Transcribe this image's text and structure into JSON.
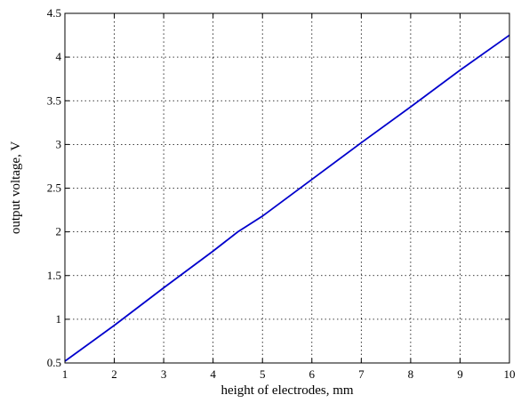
{
  "chart_data": {
    "type": "line",
    "xlabel": "height of electrodes, mm",
    "ylabel": "output voltage,  V",
    "xlim": [
      1,
      10
    ],
    "ylim": [
      0.5,
      4.5
    ],
    "xticks": [
      "1",
      "2",
      "3",
      "4",
      "5",
      "6",
      "7",
      "8",
      "9",
      "10"
    ],
    "yticks": [
      "0.5",
      "1",
      "1.5",
      "2",
      "2.5",
      "3",
      "3.5",
      "4",
      "4.5"
    ],
    "grid": true,
    "series": [
      {
        "color": "#0000cc",
        "x": [
          1,
          2,
          3,
          4,
          4.5,
          5,
          6,
          7,
          8,
          9,
          10
        ],
        "y": [
          0.52,
          0.93,
          1.36,
          1.78,
          2.0,
          2.18,
          2.6,
          3.02,
          3.43,
          3.85,
          4.25
        ]
      }
    ]
  }
}
